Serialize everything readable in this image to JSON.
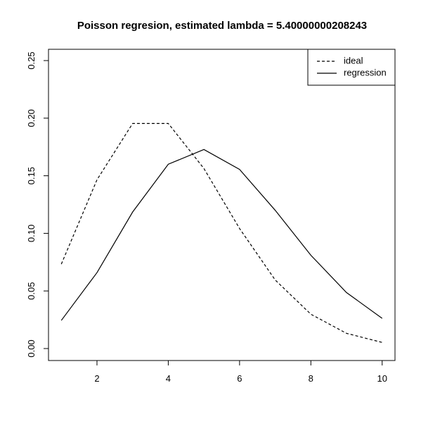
{
  "chart_data": {
    "type": "line",
    "title": "Poisson regresion, estimated lambda = 5.40000000208243",
    "x": [
      1,
      2,
      3,
      4,
      5,
      6,
      7,
      8,
      9,
      10
    ],
    "series": [
      {
        "name": "ideal",
        "color": "#000000",
        "linestyle": "dashed",
        "values": [
          0.0733,
          0.1465,
          0.1954,
          0.1954,
          0.1563,
          0.1042,
          0.0595,
          0.0298,
          0.0132,
          0.0053
        ]
      },
      {
        "name": "regression",
        "color": "#000000",
        "linestyle": "solid",
        "values": [
          0.0244,
          0.0659,
          0.1185,
          0.16,
          0.1728,
          0.1555,
          0.12,
          0.081,
          0.0486,
          0.0262
        ]
      }
    ],
    "xlim": [
      0.64,
      10.36
    ],
    "ylim": [
      -0.0104,
      0.2598
    ],
    "xticks": [
      2,
      4,
      6,
      8,
      10
    ],
    "yticks": [
      {
        "value": 0,
        "label": "0.00"
      },
      {
        "value": 0.05,
        "label": "0.05"
      },
      {
        "value": 0.1,
        "label": "0.10"
      },
      {
        "value": 0.15,
        "label": "0.15"
      },
      {
        "value": 0.2,
        "label": "0.20"
      },
      {
        "value": 0.25,
        "label": "0.25"
      }
    ],
    "legend": "top-right"
  }
}
